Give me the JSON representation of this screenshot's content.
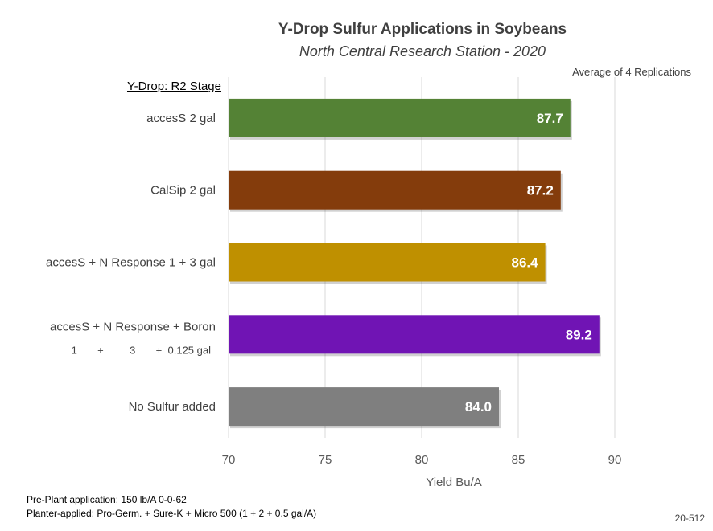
{
  "chart_data": {
    "type": "bar",
    "orientation": "horizontal",
    "title": "Y-Drop Sulfur Applications in Soybeans",
    "subtitle": "North Central Research Station - 2020",
    "note": "Average of 4 Replications",
    "group_label": "Y-Drop: R2 Stage",
    "categories": [
      "accesS  2 gal",
      "CalSip  2 gal",
      "accesS + N Response  1 + 3 gal",
      "accesS + N Response + Boron",
      "No Sulfur added"
    ],
    "category_sublabels": [
      "",
      "",
      "",
      "1       +         3       +  0.125 gal",
      ""
    ],
    "values": [
      87.7,
      87.2,
      86.4,
      89.2,
      84.0
    ],
    "value_labels": [
      "87.7",
      "87.2",
      "86.4",
      "89.2",
      "84.0"
    ],
    "colors": [
      "#548235",
      "#843C0C",
      "#BF9000",
      "#7014B4",
      "#7F7F7F"
    ],
    "xlabel": "Yield Bu/A",
    "ylabel": "",
    "xlim": [
      70,
      90
    ],
    "xticks": [
      "70",
      "75",
      "80",
      "85",
      "90"
    ],
    "grid": true,
    "legend": "none"
  },
  "footnotes": [
    "Pre-Plant application: 150 lb/A 0-0-62",
    "Planter-applied: Pro-Germ. + Sure-K + Micro 500 (1 + 2 + 0.5 gal/A)"
  ],
  "code": "20-512"
}
